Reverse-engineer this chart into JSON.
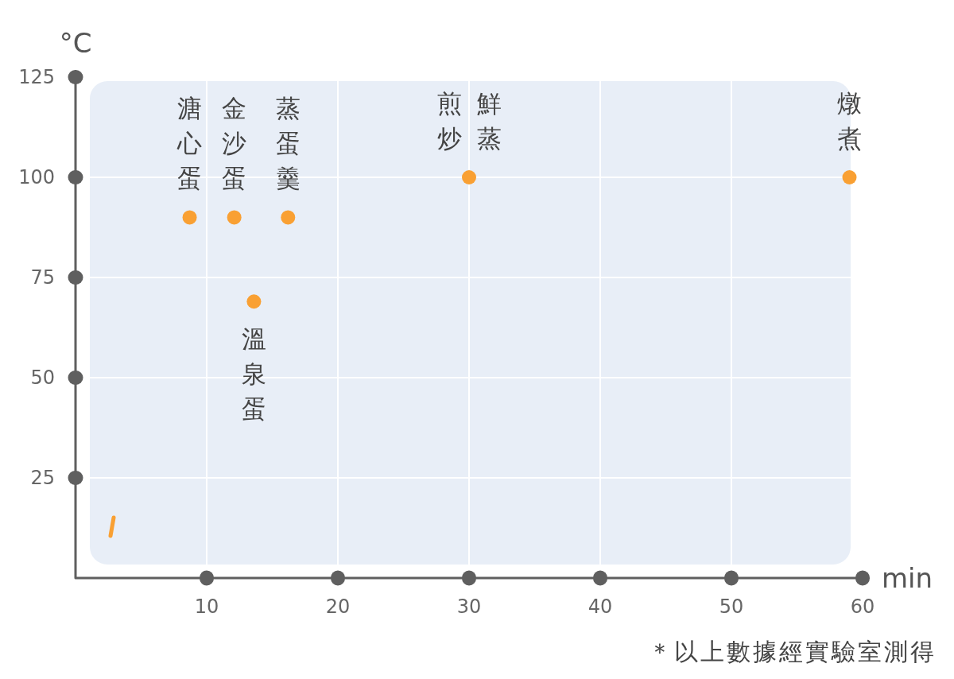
{
  "chart_data": {
    "type": "scatter",
    "xlabel": "min",
    "ylabel": "°C",
    "x": [
      8.7,
      12.1,
      16.2,
      13.6,
      30,
      59
    ],
    "values": [
      90,
      90,
      90,
      69,
      100,
      100
    ],
    "color": "#f9a033",
    "marker": "circle",
    "grid": true,
    "xlim": [
      0,
      60
    ],
    "ylim": [
      0,
      125
    ],
    "xticks": [
      10,
      20,
      30,
      40,
      50,
      60
    ],
    "yticks": [
      25,
      50,
      75,
      100,
      125
    ],
    "annotations": [
      {
        "text": "溏心蛋",
        "x": 8.7,
        "y": 90
      },
      {
        "text": "金沙蛋",
        "x": 12.1,
        "y": 90
      },
      {
        "text": "蒸蛋羹",
        "x": 16.2,
        "y": 90
      },
      {
        "text": "溫泉蛋",
        "x": 13.6,
        "y": 69
      },
      {
        "text": "煎炒",
        "x": 30,
        "y": 100
      },
      {
        "text": "鮮蒸",
        "x": 30,
        "y": 100
      },
      {
        "text": "燉煮",
        "x": 59,
        "y": 100
      },
      "＊以上數據經實驗室測得"
    ]
  }
}
